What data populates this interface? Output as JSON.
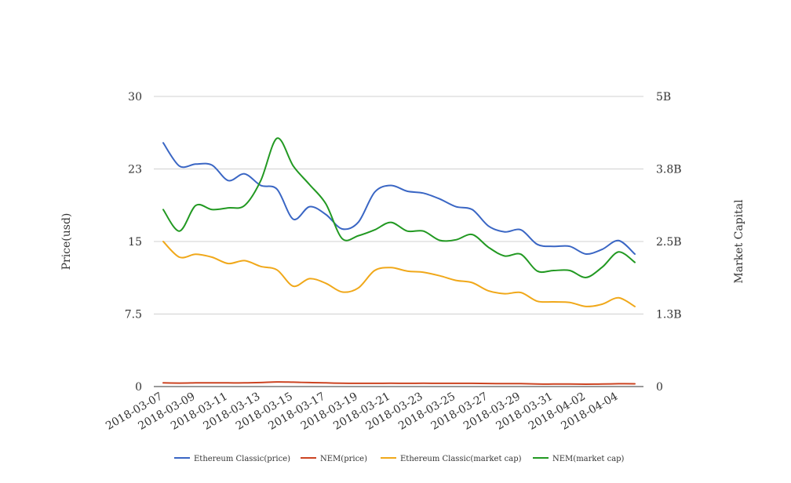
{
  "chart_data": {
    "type": "line",
    "title": "",
    "y_left_label": "Price(usd)",
    "y_right_label": "Market Capital",
    "y_left_ticks": [
      "0",
      "7.5",
      "15",
      "23",
      "30"
    ],
    "y_right_ticks": [
      "0",
      "1.3B",
      "2.5B",
      "3.8B",
      "5B"
    ],
    "y_left_range": [
      0,
      30
    ],
    "y_right_range": [
      0,
      5000000000
    ],
    "x_tick_labels": [
      "2018-03-07",
      "2018-03-09",
      "2018-03-11",
      "2018-03-13",
      "2018-03-15",
      "2018-03-17",
      "2018-03-19",
      "2018-03-21",
      "2018-03-23",
      "2018-03-25",
      "2018-03-27",
      "2018-03-29",
      "2018-03-31",
      "2018-04-02",
      "2018-04-04"
    ],
    "x": [
      "2018-03-07",
      "2018-03-08",
      "2018-03-09",
      "2018-03-10",
      "2018-03-11",
      "2018-03-12",
      "2018-03-13",
      "2018-03-14",
      "2018-03-15",
      "2018-03-16",
      "2018-03-17",
      "2018-03-18",
      "2018-03-19",
      "2018-03-20",
      "2018-03-21",
      "2018-03-22",
      "2018-03-23",
      "2018-03-24",
      "2018-03-25",
      "2018-03-26",
      "2018-03-27",
      "2018-03-28",
      "2018-03-29",
      "2018-03-30",
      "2018-03-31",
      "2018-04-01",
      "2018-04-02",
      "2018-04-03",
      "2018-04-04",
      "2018-04-05"
    ],
    "grid": true,
    "legend_position": "bottom",
    "series": [
      {
        "name": "Ethereum Classic(price)",
        "axis": "left",
        "color": "#3a66c4",
        "values": [
          25.2,
          22.8,
          23.0,
          22.9,
          21.3,
          22.0,
          20.8,
          20.4,
          17.3,
          18.6,
          17.8,
          16.3,
          17.0,
          20.1,
          20.8,
          20.2,
          20.0,
          19.4,
          18.6,
          18.3,
          16.6,
          16.0,
          16.2,
          14.7,
          14.5,
          14.5,
          13.7,
          14.2,
          15.1,
          13.7
        ]
      },
      {
        "name": "NEM(price)",
        "axis": "left",
        "color": "#cc4422",
        "values": [
          0.38,
          0.36,
          0.38,
          0.38,
          0.38,
          0.38,
          0.41,
          0.48,
          0.45,
          0.41,
          0.38,
          0.34,
          0.33,
          0.33,
          0.34,
          0.33,
          0.34,
          0.33,
          0.33,
          0.33,
          0.32,
          0.3,
          0.3,
          0.26,
          0.26,
          0.26,
          0.24,
          0.26,
          0.29,
          0.28
        ]
      },
      {
        "name": "Ethereum Classic(market cap)",
        "axis": "right",
        "color": "#f0a81a",
        "values": [
          2500000000,
          2230000000,
          2280000000,
          2230000000,
          2120000000,
          2170000000,
          2070000000,
          2010000000,
          1730000000,
          1860000000,
          1780000000,
          1630000000,
          1700000000,
          2000000000,
          2050000000,
          1990000000,
          1970000000,
          1910000000,
          1830000000,
          1790000000,
          1650000000,
          1600000000,
          1620000000,
          1470000000,
          1460000000,
          1450000000,
          1380000000,
          1420000000,
          1530000000,
          1380000000
        ]
      },
      {
        "name": "NEM(market cap)",
        "axis": "right",
        "color": "#229922",
        "values": [
          3050000000,
          2680000000,
          3120000000,
          3050000000,
          3080000000,
          3120000000,
          3550000000,
          4280000000,
          3800000000,
          3480000000,
          3150000000,
          2550000000,
          2600000000,
          2700000000,
          2830000000,
          2680000000,
          2680000000,
          2520000000,
          2530000000,
          2620000000,
          2400000000,
          2250000000,
          2280000000,
          1990000000,
          2000000000,
          2000000000,
          1880000000,
          2060000000,
          2320000000,
          2140000000
        ]
      }
    ]
  }
}
